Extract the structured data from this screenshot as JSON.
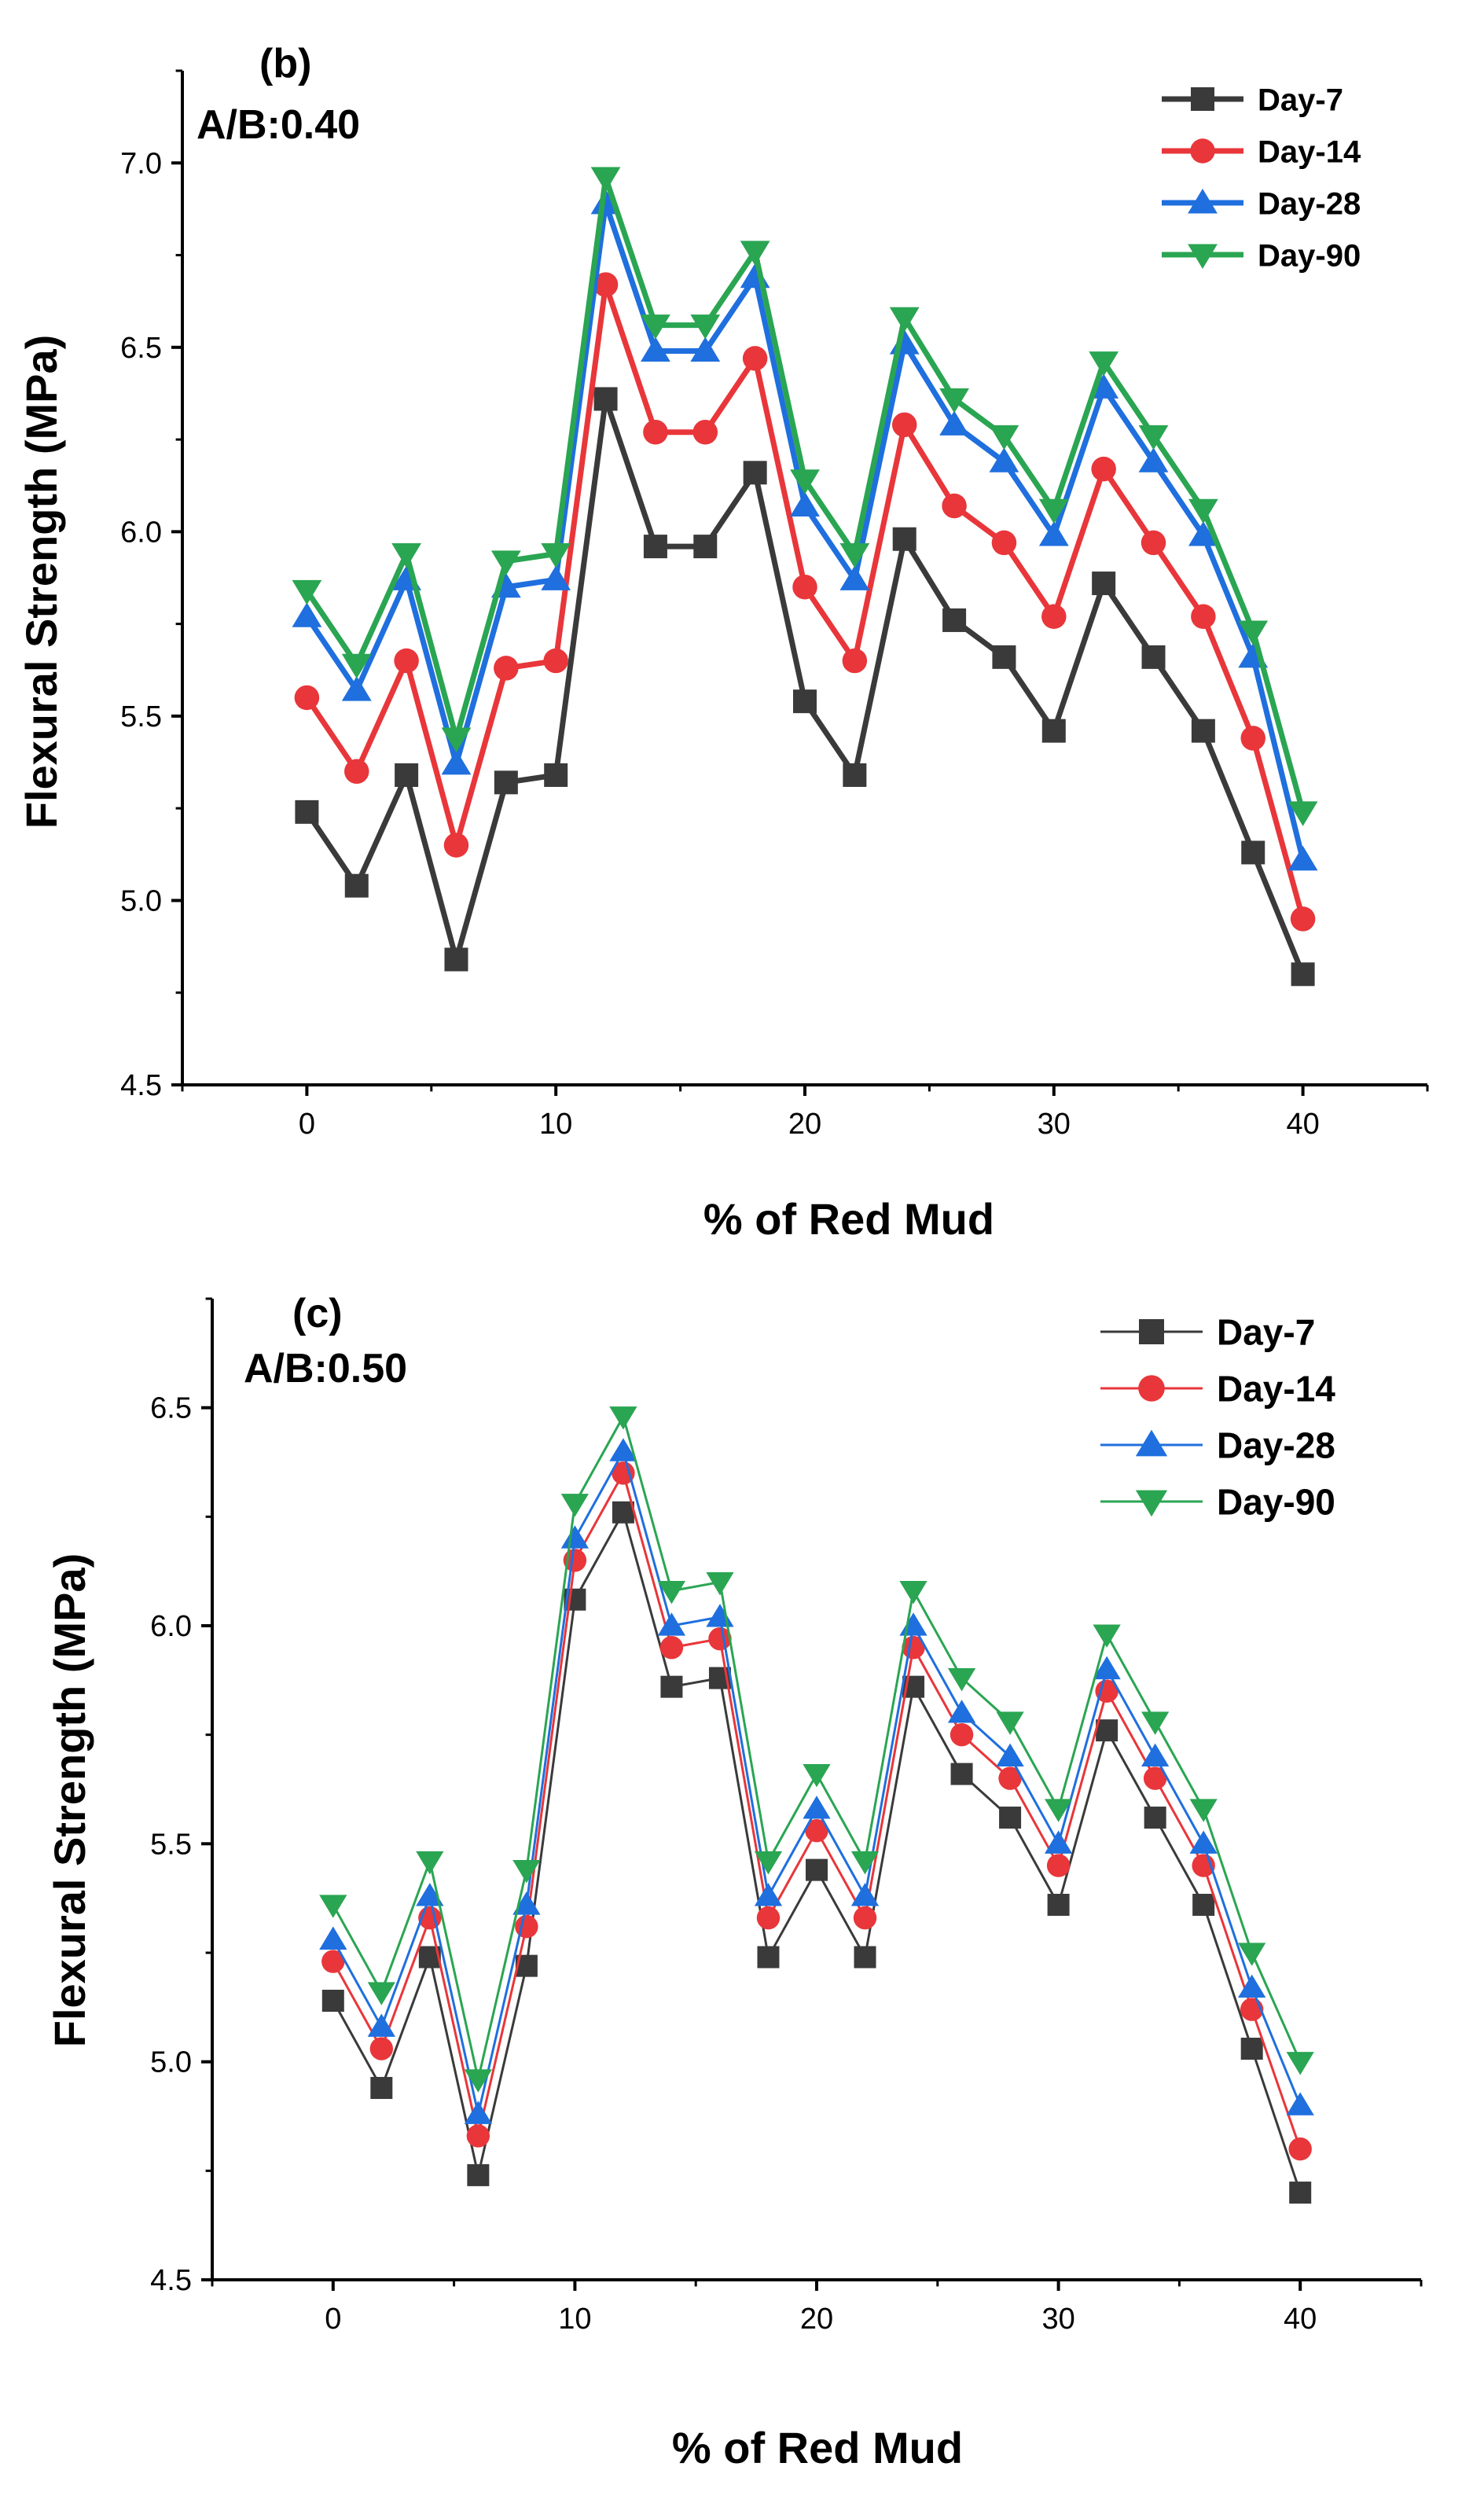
{
  "colors": {
    "day7": "#3a3a3a",
    "day14": "#e8363a",
    "day28": "#1f6fde",
    "day90": "#2aa552"
  },
  "chart_data": [
    {
      "type": "line",
      "panel_label": "(b)",
      "annotation": "A/B:0.40",
      "xlabel": "% of Red Mud",
      "ylabel": "Flexural  Strength (MPa)",
      "xlim": [
        -5,
        45
      ],
      "ylim": [
        4.5,
        7.25
      ],
      "xticks": [
        0,
        10,
        20,
        30,
        40
      ],
      "yticks": [
        4.5,
        5.0,
        5.5,
        6.0,
        6.5,
        7.0
      ],
      "ytick_labels": [
        "4.5",
        "5.0",
        "5.5",
        "6.0",
        "6.5",
        "7.0"
      ],
      "legend_position": "top-right",
      "x": [
        0,
        2,
        4,
        6,
        8,
        10,
        12,
        14,
        16,
        18,
        20,
        22,
        24,
        26,
        28,
        30,
        32,
        34,
        36,
        38,
        40
      ],
      "series": [
        {
          "name": "Day-7",
          "marker": "square",
          "values": [
            5.24,
            5.04,
            5.34,
            4.84,
            5.32,
            5.34,
            6.36,
            5.96,
            5.96,
            6.16,
            5.54,
            5.34,
            5.98,
            5.76,
            5.66,
            5.46,
            5.86,
            5.66,
            5.46,
            5.13,
            4.8
          ]
        },
        {
          "name": "Day-14",
          "marker": "circle",
          "values": [
            5.55,
            5.35,
            5.65,
            5.15,
            5.63,
            5.65,
            6.67,
            6.27,
            6.27,
            6.47,
            5.85,
            5.65,
            6.29,
            6.07,
            5.97,
            5.77,
            6.17,
            5.97,
            5.77,
            5.44,
            4.95
          ]
        },
        {
          "name": "Day-28",
          "marker": "triangle-up",
          "values": [
            5.77,
            5.57,
            5.87,
            5.37,
            5.85,
            5.87,
            6.89,
            6.49,
            6.49,
            6.69,
            6.07,
            5.87,
            6.51,
            6.29,
            6.19,
            5.99,
            6.39,
            6.19,
            5.99,
            5.66,
            5.11
          ]
        },
        {
          "name": "Day-90",
          "marker": "triangle-down",
          "values": [
            5.84,
            5.64,
            5.94,
            5.44,
            5.92,
            5.94,
            6.96,
            6.56,
            6.56,
            6.76,
            6.14,
            5.94,
            6.58,
            6.36,
            6.26,
            6.06,
            6.46,
            6.26,
            6.06,
            5.73,
            5.24
          ]
        }
      ]
    },
    {
      "type": "line",
      "panel_label": "(c)",
      "annotation": "A/B:0.50",
      "xlabel": "% of Red Mud",
      "ylabel": "Flexural  Strength (MPa)",
      "xlim": [
        -5,
        45
      ],
      "ylim": [
        4.5,
        6.75
      ],
      "xticks": [
        0,
        10,
        20,
        30,
        40
      ],
      "yticks": [
        4.5,
        5.0,
        5.5,
        6.0,
        6.5
      ],
      "ytick_labels": [
        "4.5",
        "5.0",
        "5.5",
        "6.0",
        "6.5"
      ],
      "legend_position": "top-right",
      "x": [
        0,
        2,
        4,
        6,
        8,
        10,
        12,
        14,
        16,
        18,
        20,
        22,
        24,
        26,
        28,
        30,
        32,
        34,
        36,
        38,
        40
      ],
      "series": [
        {
          "name": "Day-7",
          "marker": "square",
          "values": [
            5.14,
            4.94,
            5.24,
            4.74,
            5.22,
            6.06,
            6.26,
            5.86,
            5.88,
            5.24,
            5.44,
            5.24,
            5.86,
            5.66,
            5.56,
            5.36,
            5.76,
            5.56,
            5.36,
            5.03,
            4.7
          ]
        },
        {
          "name": "Day-14",
          "marker": "circle",
          "values": [
            5.23,
            5.03,
            5.33,
            4.83,
            5.31,
            6.15,
            6.35,
            5.95,
            5.97,
            5.33,
            5.53,
            5.33,
            5.95,
            5.75,
            5.65,
            5.45,
            5.85,
            5.65,
            5.45,
            5.12,
            4.8
          ]
        },
        {
          "name": "Day-28",
          "marker": "triangle-up",
          "values": [
            5.28,
            5.08,
            5.38,
            4.88,
            5.36,
            6.2,
            6.4,
            6.0,
            6.02,
            5.38,
            5.58,
            5.38,
            6.0,
            5.8,
            5.7,
            5.5,
            5.9,
            5.7,
            5.5,
            5.17,
            4.9
          ]
        },
        {
          "name": "Day-90",
          "marker": "triangle-down",
          "values": [
            5.36,
            5.16,
            5.46,
            4.96,
            5.44,
            6.28,
            6.48,
            6.08,
            6.1,
            5.46,
            5.66,
            5.46,
            6.08,
            5.88,
            5.78,
            5.58,
            5.98,
            5.78,
            5.58,
            5.25,
            5.0
          ]
        }
      ]
    }
  ]
}
